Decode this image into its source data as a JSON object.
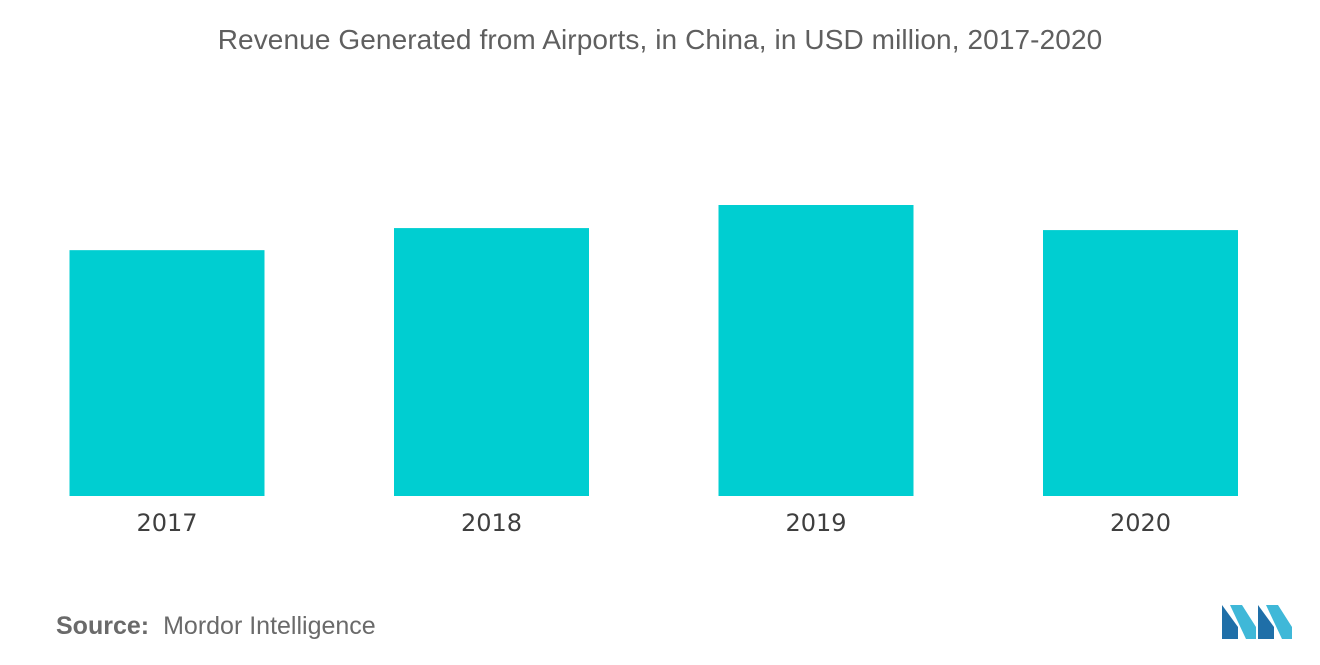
{
  "chart_data": {
    "type": "bar",
    "title": "Revenue Generated from Airports, in China, in USD million, 2017-2020",
    "xlabel": "",
    "ylabel": "",
    "categories": [
      "2017",
      "2018",
      "2019",
      "2020"
    ],
    "values": [
      245,
      267,
      290,
      265
    ],
    "ylim": [
      0,
      300
    ],
    "grid": false,
    "legend": "none",
    "bar_color": "#00CED1"
  },
  "source": {
    "label": "Source:",
    "text": "Mordor Intelligence"
  },
  "logo": {
    "icon": "mordor-intelligence-logo",
    "colors": [
      "#1f6fa8",
      "#3fb8d8",
      "#00CED1"
    ]
  }
}
